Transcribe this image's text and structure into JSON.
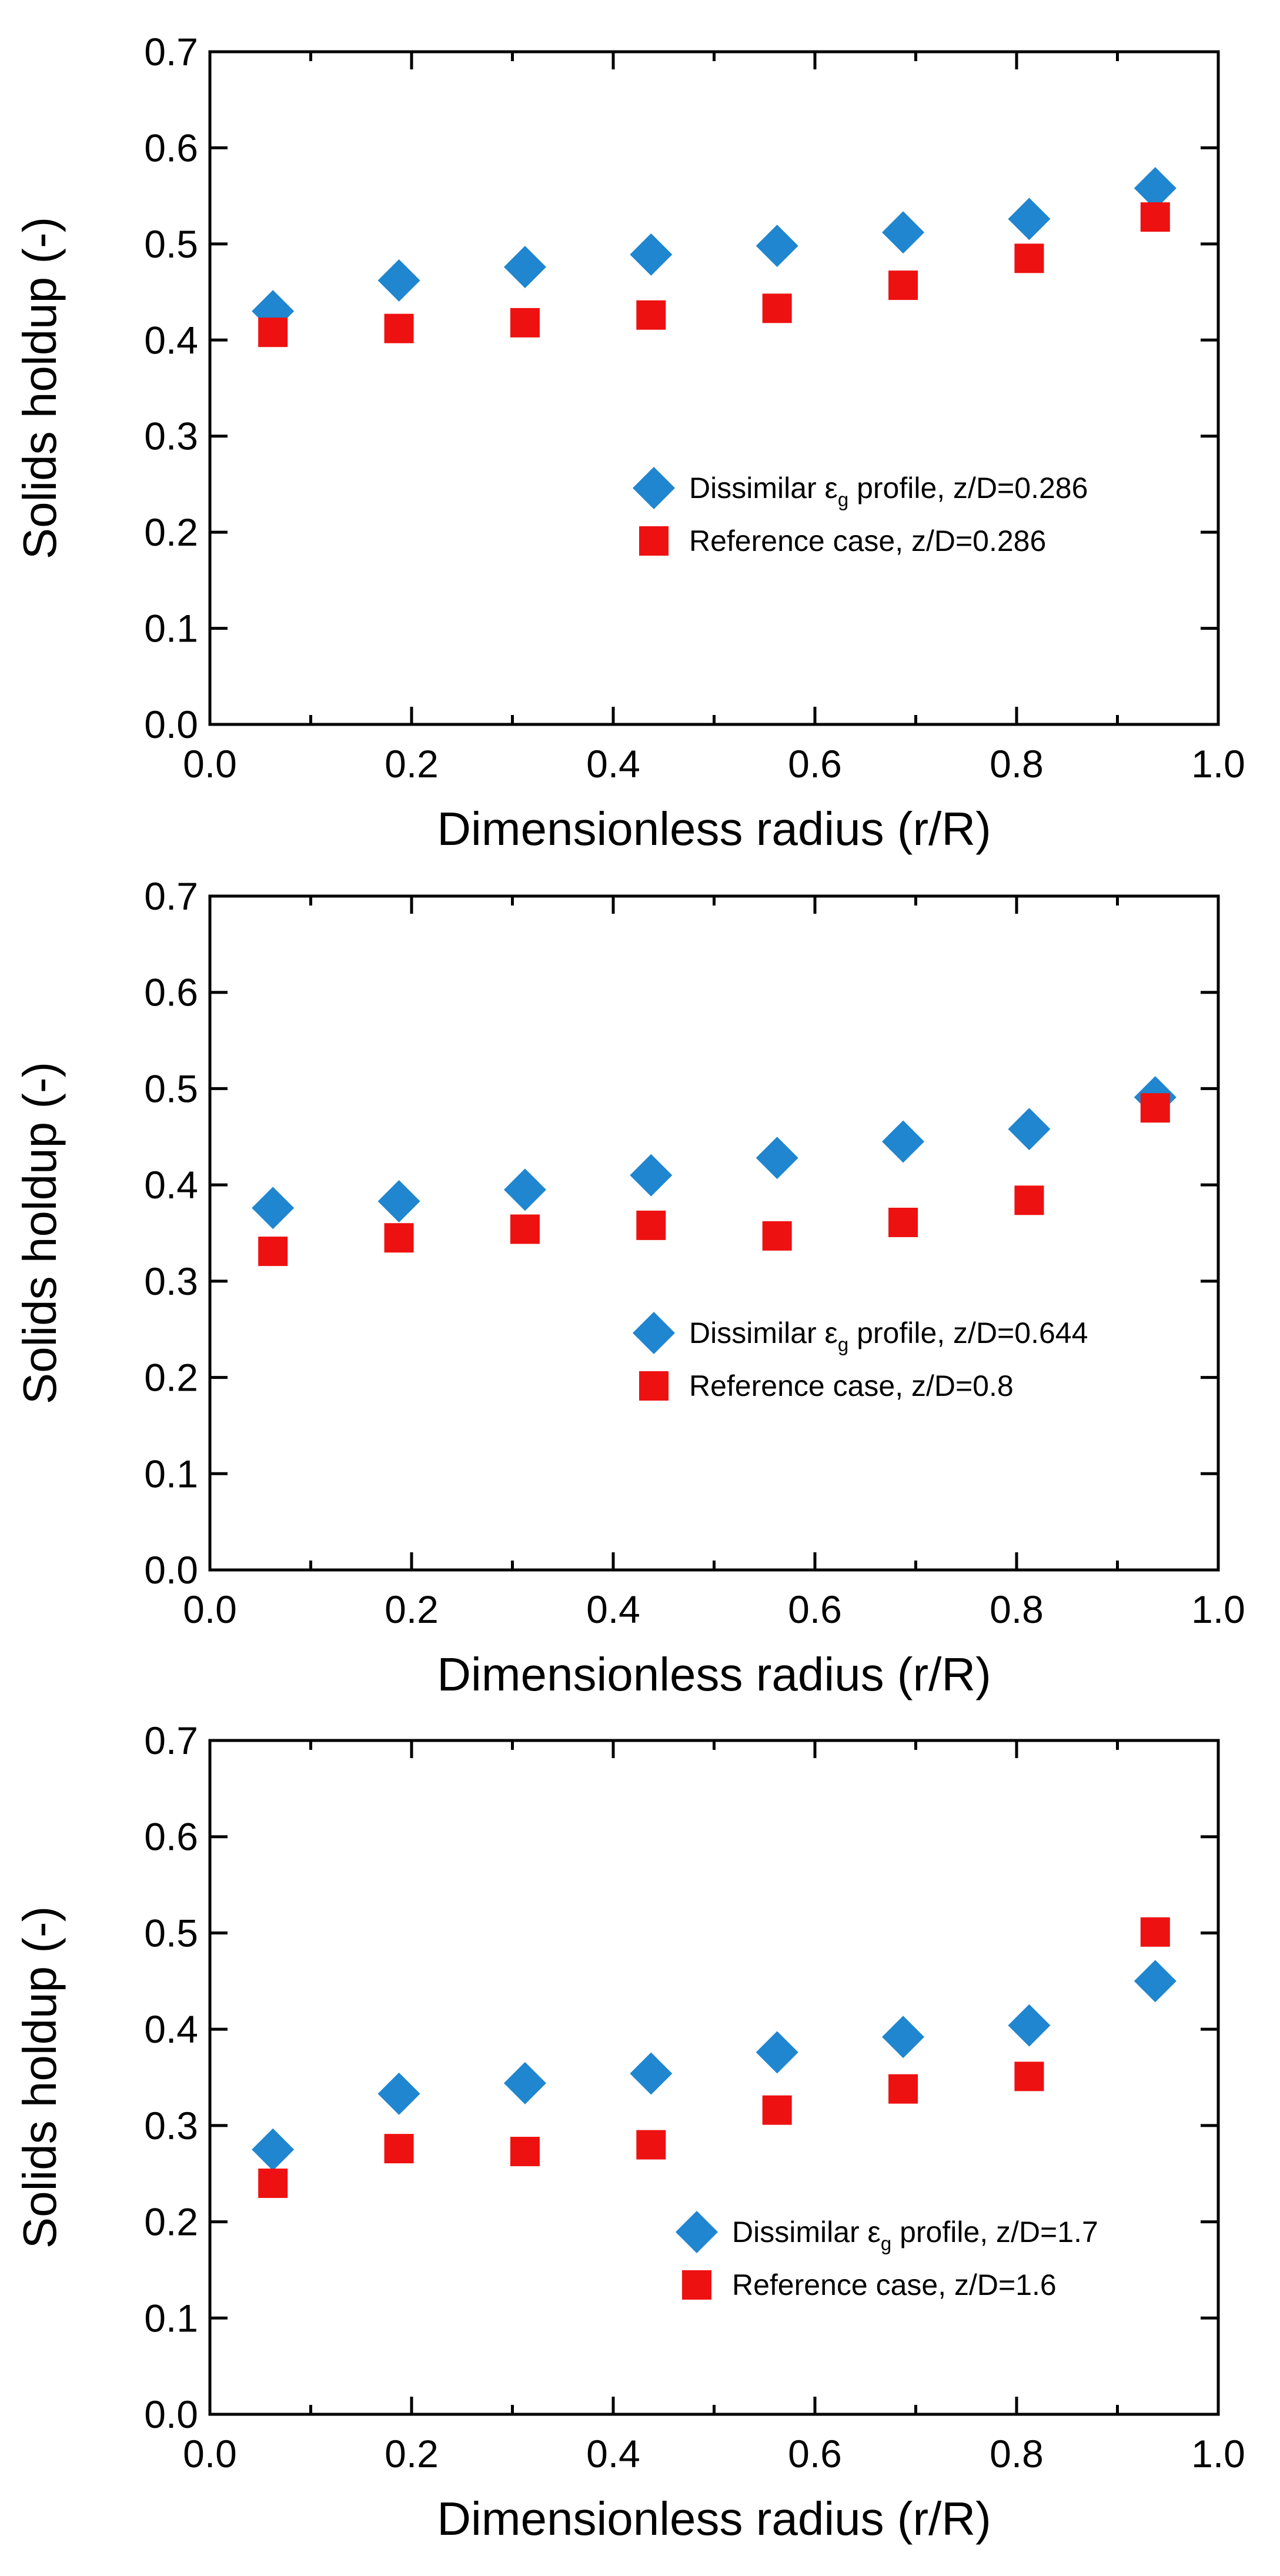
{
  "colors": {
    "series_a": "#1f86cf",
    "series_b": "#ee1111",
    "axis": "#000000",
    "background": "#ffffff"
  },
  "chart_data": [
    {
      "type": "scatter",
      "title": "",
      "xlabel": "Dimensionless radius (r/R)",
      "ylabel": "Solids holdup (-)",
      "xlim": [
        0,
        1
      ],
      "ylim": [
        0,
        0.7
      ],
      "x_ticks": [
        "0.0",
        "0.2",
        "0.4",
        "0.6",
        "0.8",
        "1.0"
      ],
      "y_ticks": [
        "0.0",
        "0.1",
        "0.2",
        "0.3",
        "0.4",
        "0.5",
        "0.6",
        "0.7"
      ],
      "grid": false,
      "legend_position": "center-right",
      "series": [
        {
          "name": "Dissimilar εg profile, z/D=0.286",
          "legend_pre": "Dissimilar ε",
          "legend_sub": "g",
          "legend_post": " profile, z/D=0.286",
          "marker": "diamond",
          "x": [
            0.0625,
            0.1875,
            0.3125,
            0.4375,
            0.5625,
            0.6875,
            0.8125,
            0.9375
          ],
          "y": [
            0.43,
            0.462,
            0.476,
            0.489,
            0.498,
            0.512,
            0.526,
            0.558
          ]
        },
        {
          "name": "Reference case, z/D=0.286",
          "legend_pre": "Reference case, z/D=0.286",
          "legend_sub": "",
          "legend_post": "",
          "marker": "square",
          "x": [
            0.0625,
            0.1875,
            0.3125,
            0.4375,
            0.5625,
            0.6875,
            0.8125,
            0.9375
          ],
          "y": [
            0.408,
            0.412,
            0.418,
            0.426,
            0.433,
            0.457,
            0.485,
            0.528
          ]
        }
      ]
    },
    {
      "type": "scatter",
      "title": "",
      "xlabel": "Dimensionless radius (r/R)",
      "ylabel": "Solids holdup (-)",
      "xlim": [
        0,
        1
      ],
      "ylim": [
        0,
        0.7
      ],
      "x_ticks": [
        "0.0",
        "0.2",
        "0.4",
        "0.6",
        "0.8",
        "1.0"
      ],
      "y_ticks": [
        "0.0",
        "0.1",
        "0.2",
        "0.3",
        "0.4",
        "0.5",
        "0.6",
        "0.7"
      ],
      "grid": false,
      "legend_position": "center-right",
      "series": [
        {
          "name": "Dissimilar εg profile, z/D=0.644",
          "legend_pre": "Dissimilar ε",
          "legend_sub": "g",
          "legend_post": " profile, z/D=0.644",
          "marker": "diamond",
          "x": [
            0.0625,
            0.1875,
            0.3125,
            0.4375,
            0.5625,
            0.6875,
            0.8125,
            0.9375
          ],
          "y": [
            0.376,
            0.383,
            0.395,
            0.41,
            0.428,
            0.445,
            0.458,
            0.491
          ]
        },
        {
          "name": "Reference case, z/D=0.8",
          "legend_pre": "Reference case, z/D=0.8",
          "legend_sub": "",
          "legend_post": "",
          "marker": "square",
          "x": [
            0.0625,
            0.1875,
            0.3125,
            0.4375,
            0.5625,
            0.6875,
            0.8125,
            0.9375
          ],
          "y": [
            0.331,
            0.345,
            0.354,
            0.358,
            0.347,
            0.361,
            0.384,
            0.48
          ]
        }
      ]
    },
    {
      "type": "scatter",
      "title": "",
      "xlabel": "Dimensionless radius (r/R)",
      "ylabel": "Solids holdup (-)",
      "xlim": [
        0,
        1
      ],
      "ylim": [
        0,
        0.7
      ],
      "x_ticks": [
        "0.0",
        "0.2",
        "0.4",
        "0.6",
        "0.8",
        "1.0"
      ],
      "y_ticks": [
        "0.0",
        "0.1",
        "0.2",
        "0.3",
        "0.4",
        "0.5",
        "0.6",
        "0.7"
      ],
      "grid": false,
      "legend_position": "lower-right",
      "series": [
        {
          "name": "Dissimilar εg profile, z/D=1.7",
          "legend_pre": "Dissimilar ε",
          "legend_sub": "g",
          "legend_post": " profile, z/D=1.7",
          "marker": "diamond",
          "x": [
            0.0625,
            0.1875,
            0.3125,
            0.4375,
            0.5625,
            0.6875,
            0.8125,
            0.9375
          ],
          "y": [
            0.275,
            0.333,
            0.344,
            0.354,
            0.376,
            0.392,
            0.404,
            0.45
          ]
        },
        {
          "name": "Reference case, z/D=1.6",
          "legend_pre": "Reference case, z/D=1.6",
          "legend_sub": "",
          "legend_post": "",
          "marker": "square",
          "x": [
            0.0625,
            0.1875,
            0.3125,
            0.4375,
            0.5625,
            0.6875,
            0.8125,
            0.9375
          ],
          "y": [
            0.24,
            0.276,
            0.273,
            0.28,
            0.316,
            0.338,
            0.351,
            0.501
          ]
        }
      ]
    }
  ]
}
